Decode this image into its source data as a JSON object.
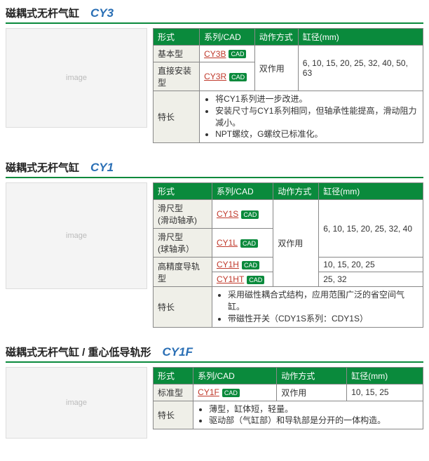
{
  "sections": [
    {
      "title": "磁耦式无杆气缸",
      "model": "CY3",
      "img_h": "h1",
      "headers": [
        "形式",
        "系列/CAD",
        "动作方式",
        "缸径(mm)"
      ],
      "rows": [
        {
          "form": "基本型",
          "series": "CY3B",
          "cad": true,
          "action": "双作用",
          "bore": "6, 10, 15, 20, 25, 32, 40, 50, 63",
          "action_rs": 2,
          "bore_rs": 2
        },
        {
          "form": "直接安装型",
          "series": "CY3R",
          "cad": true
        }
      ],
      "feature_label": "特长",
      "features": [
        "将CY1系列进一步改进。",
        "安装尺寸与CY1系列相同，但轴承性能提高，滑动阻力减小。",
        "NPT螺纹，G螺纹已标准化。"
      ]
    },
    {
      "title": "磁耦式无杆气缸",
      "model": "CY1",
      "img_h": "h2",
      "headers": [
        "形式",
        "系列/CAD",
        "动作方式",
        "缸径(mm)"
      ],
      "rows": [
        {
          "form": "滑尺型\n(滑动轴承)",
          "series": "CY1S",
          "cad": true,
          "action": "双作用",
          "bore": "6, 10, 15, 20, 25, 32, 40",
          "action_rs": 4,
          "bore_rs": 2
        },
        {
          "form": "滑尺型\n(球轴承）",
          "series": "CY1L",
          "cad": true
        },
        {
          "form": "高精度导轨型",
          "form_rs": 2,
          "series": "CY1H",
          "cad": true,
          "bore": "10, 15, 20, 25"
        },
        {
          "series": "CY1HT",
          "cad": true,
          "bore": "25, 32"
        }
      ],
      "feature_label": "特长",
      "features": [
        "采用磁性耦合式结构，应用范围广泛的省空间气缸。",
        "带磁性开关（CDY1S系列：CDY1S）"
      ]
    },
    {
      "title": "磁耦式无杆气缸  / 重心低导轨形",
      "model": "CY1F",
      "img_h": "h3",
      "headers": [
        "形式",
        "系列/CAD",
        "动作方式",
        "缸径(mm)"
      ],
      "rows": [
        {
          "form": "标准型",
          "series": "CY1F",
          "cad": true,
          "action": "双作用",
          "bore": "10, 15, 25"
        }
      ],
      "feature_label": "特长",
      "features": [
        "薄型，缸体短，轻量。",
        "驱动部（气缸部）和导轨部是分开的一体构造。"
      ]
    }
  ],
  "cad_label": "CAD"
}
